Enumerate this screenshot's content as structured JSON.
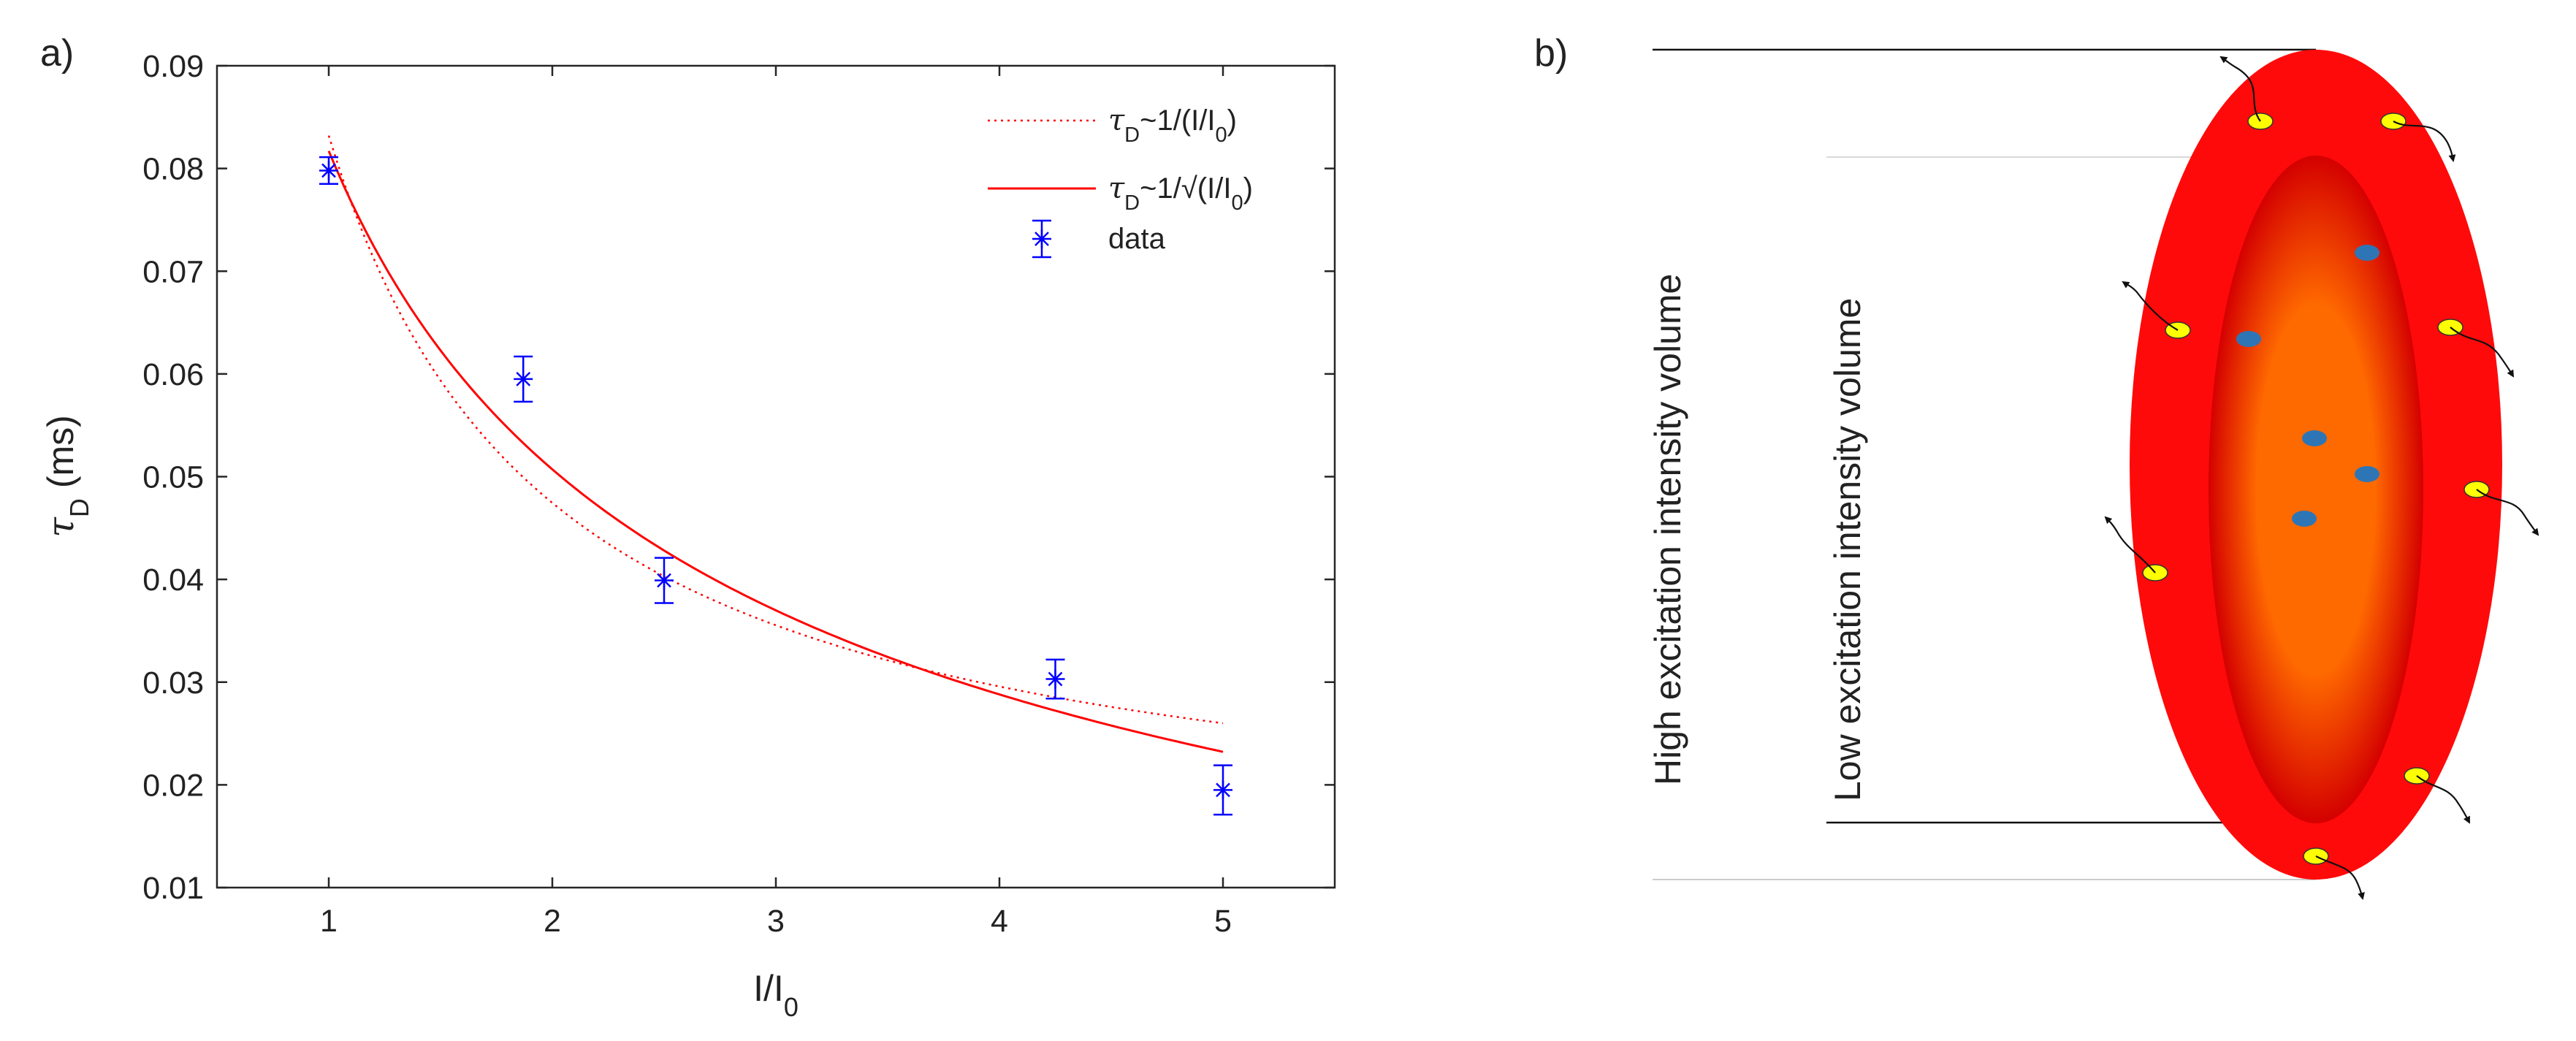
{
  "panel_a": {
    "label": "a)",
    "legend": {
      "placement": "top-right",
      "entries": [
        {
          "tau": "τ",
          "tau_sub": "D",
          "rest": "~1/(I/I",
          "rest_sub": "0",
          "close": ")"
        },
        {
          "tau": "τ",
          "tau_sub": "D",
          "rest": "~1/√(I/I",
          "rest_sub": "0",
          "close": ")"
        },
        {
          "text": "data"
        }
      ]
    }
  },
  "panel_b": {
    "label": "b)",
    "high_label": "High excitation intensity volume",
    "low_label": "Low excitation intensity volume",
    "colors": {
      "outer": "#ff0a0a",
      "inner": "#ff6a00",
      "inner_dark_edge": "#cc0000",
      "free_molecule": "#2e75b6",
      "bleached_molecule": "#ffff00"
    }
  },
  "chart_data": {
    "type": "scatter",
    "xlabel": "I/I",
    "xlabel_sub": "0",
    "ylabel": "τ",
    "ylabel_sub": "D",
    "ylabel_unit": " (ms)",
    "xlim": [
      0.5,
      5.5
    ],
    "ylim": [
      0.01,
      0.09
    ],
    "x_ticks": [
      1,
      2,
      3,
      4,
      5
    ],
    "y_ticks": [
      0.01,
      0.02,
      0.03,
      0.04,
      0.05,
      0.06,
      0.07,
      0.08,
      0.09
    ],
    "grid": false,
    "series": [
      {
        "name": "data",
        "kind": "errorbar",
        "color": "#0000ff",
        "x": [
          1.0,
          1.87,
          2.5,
          4.25,
          5.0
        ],
        "y": [
          0.0798,
          0.0595,
          0.0399,
          0.0303,
          0.0195
        ],
        "err": [
          0.0013,
          0.0022,
          0.0022,
          0.0019,
          0.0024
        ]
      },
      {
        "name": "τD~1/(I/I0)",
        "kind": "fit",
        "style": "dotted",
        "color": "#ff0000",
        "model": "A/(x)+B",
        "A": 0.0715,
        "B": 0.0117,
        "x_range": [
          1,
          5
        ]
      },
      {
        "name": "τD~1/√(I/I0)",
        "kind": "fit",
        "style": "solid",
        "color": "#ff0000",
        "model": "A/sqrt(x)+B",
        "A": 0.1058,
        "B": -0.0241,
        "x_range": [
          1,
          5
        ]
      }
    ]
  }
}
